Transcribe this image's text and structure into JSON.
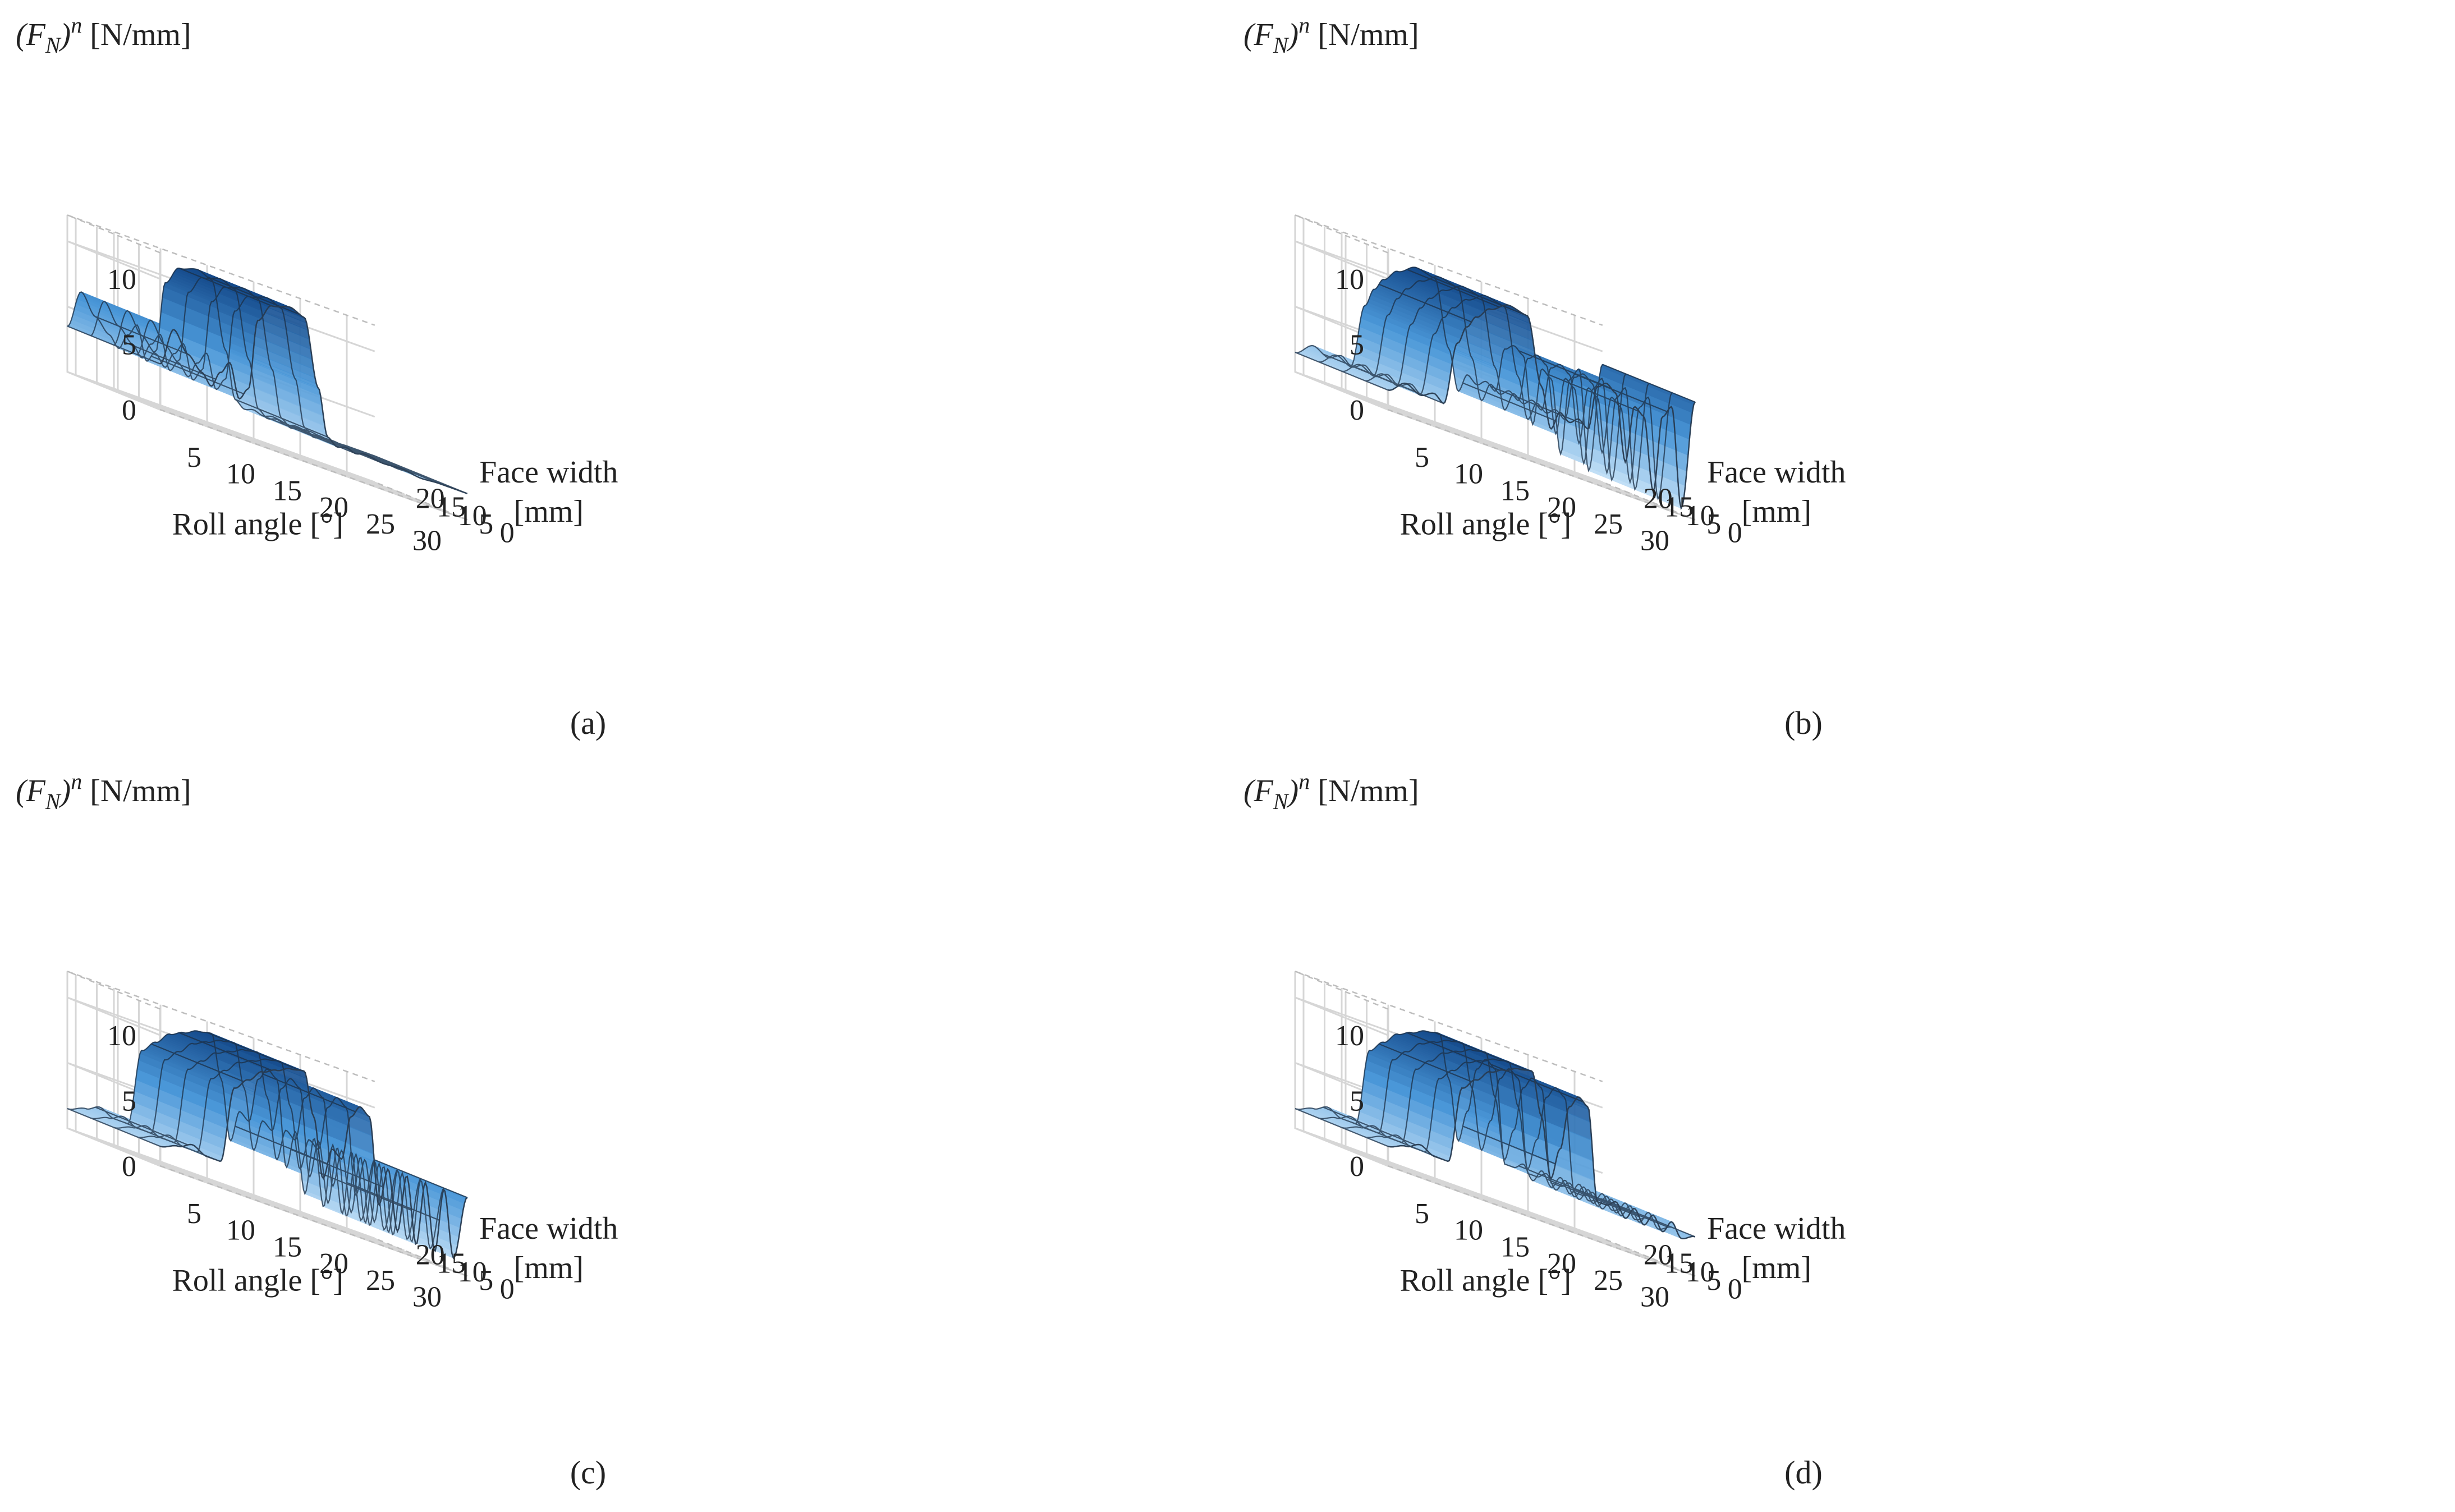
{
  "figure": {
    "colors": {
      "low": "#cfe7f9",
      "mid": "#4a97d8",
      "high": "#0d3f80",
      "grid": "#d6d6d6",
      "mesh": "#1c2f45"
    },
    "common": {
      "zlabel_main": "(F",
      "zlabel_sub": "N",
      "zlabel_close": ")",
      "zlabel_sup": "n",
      "zlabel_unit": " [N/mm]",
      "xlabel": "Roll angle [°]",
      "ylabel_line1": "Face width",
      "ylabel_line2": "[mm]"
    }
  },
  "chart_data": [
    {
      "type": "surface",
      "caption": "(a)",
      "x_ticks": [
        "5",
        "10",
        "15",
        "20",
        "25",
        "30"
      ],
      "y_ticks": [
        "0",
        "5",
        "10",
        "15",
        "20"
      ],
      "z_ticks": [
        "0",
        "5",
        "10"
      ],
      "xlim": [
        0,
        33
      ],
      "ylim": [
        0,
        22
      ],
      "zlim": [
        0,
        12
      ],
      "profile": {
        "x": [
          0,
          1.5,
          3,
          4.5,
          5.5,
          6.5,
          7.5,
          8.5,
          9.5,
          10.5,
          12,
          14,
          15.5,
          17,
          18,
          19,
          20,
          21,
          22,
          24,
          26,
          28,
          30,
          32,
          33
        ],
        "z": [
          3.5,
          6.5,
          5.0,
          4.0,
          3.2,
          4.5,
          5.5,
          3.0,
          4.0,
          9.5,
          11.0,
          11.4,
          11.0,
          6.0,
          2.5,
          2.0,
          2.2,
          2.0,
          2.2,
          2.0,
          2.1,
          1.9,
          2.0,
          2.0,
          2.0
        ]
      }
    },
    {
      "type": "surface",
      "caption": "(b)",
      "x_ticks": [
        "5",
        "10",
        "15",
        "20",
        "25",
        "30"
      ],
      "y_ticks": [
        "0",
        "5",
        "10",
        "15",
        "20"
      ],
      "z_ticks": [
        "0",
        "5",
        "10"
      ],
      "xlim": [
        0,
        33
      ],
      "ylim": [
        0,
        22
      ],
      "zlim": [
        0,
        12
      ],
      "profile": {
        "x": [
          0,
          2,
          3.5,
          5,
          6,
          7.5,
          8.5,
          9.5,
          11,
          13,
          15,
          16.5,
          17.5,
          18.5,
          19.5,
          20.5,
          21.5,
          22.5,
          23.5,
          24.5,
          25.5,
          26.5,
          27.5,
          28.5,
          29.5,
          30.5,
          31.5,
          33
        ],
        "z": [
          1.5,
          2.5,
          2.0,
          2.5,
          2.0,
          7.0,
          8.5,
          9.5,
          10.5,
          11.3,
          11.0,
          6.0,
          3.0,
          4.5,
          4.0,
          4.5,
          4.0,
          7.5,
          8.0,
          7.5,
          2.5,
          7.0,
          6.5,
          1.0,
          7.0,
          8.0,
          0.5,
          9.0
        ]
      }
    },
    {
      "type": "surface",
      "caption": "(c)",
      "x_ticks": [
        "5",
        "10",
        "15",
        "20",
        "25",
        "30"
      ],
      "y_ticks": [
        "0",
        "5",
        "10",
        "15",
        "20"
      ],
      "z_ticks": [
        "0",
        "5",
        "10"
      ],
      "xlim": [
        0,
        33
      ],
      "ylim": [
        0,
        22
      ],
      "zlim": [
        0,
        12
      ],
      "profile": {
        "x": [
          0,
          2,
          3.5,
          5,
          6.5,
          8,
          9.5,
          11,
          12.5,
          14,
          15.5,
          16.5,
          17.5,
          18.5,
          19.5,
          20.5,
          21.5,
          22.5,
          23.5,
          24.5,
          25.5,
          26.5,
          27.5,
          28.5,
          29.5,
          30.5,
          31.5,
          33
        ],
        "z": [
          1.5,
          2.0,
          2.5,
          2.0,
          2.0,
          8.0,
          9.0,
          10.0,
          10.5,
          11.0,
          11.2,
          8.0,
          3.5,
          6.0,
          5.5,
          9.0,
          10.0,
          9.5,
          3.0,
          6.0,
          1.5,
          6.0,
          1.0,
          6.0,
          1.0,
          6.0,
          1.0,
          6.0
        ]
      }
    },
    {
      "type": "surface",
      "caption": "(d)",
      "x_ticks": [
        "5",
        "10",
        "15",
        "20",
        "25",
        "30"
      ],
      "y_ticks": [
        "0",
        "5",
        "10",
        "15",
        "20"
      ],
      "z_ticks": [
        "0",
        "5",
        "10"
      ],
      "xlim": [
        0,
        33
      ],
      "ylim": [
        0,
        22
      ],
      "zlim": [
        0,
        12
      ],
      "profile": {
        "x": [
          0,
          2,
          3.5,
          5,
          6.5,
          8,
          9.5,
          11,
          12.5,
          14,
          15.5,
          16.5,
          17.5,
          18.5,
          19.5,
          20.5,
          21.5,
          22.5,
          23.5,
          24.5,
          25.5,
          26.5,
          27.5,
          28.5,
          29.5,
          30.5,
          31.5,
          33
        ],
        "z": [
          1.5,
          2.0,
          2.5,
          2.0,
          2.0,
          8.0,
          9.0,
          10.0,
          10.5,
          11.0,
          11.2,
          8.0,
          3.5,
          6.0,
          9.5,
          10.5,
          10.0,
          3.0,
          3.0,
          3.5,
          2.5,
          3.5,
          2.5,
          3.5,
          2.5,
          3.5,
          2.5,
          3.0
        ]
      }
    }
  ]
}
